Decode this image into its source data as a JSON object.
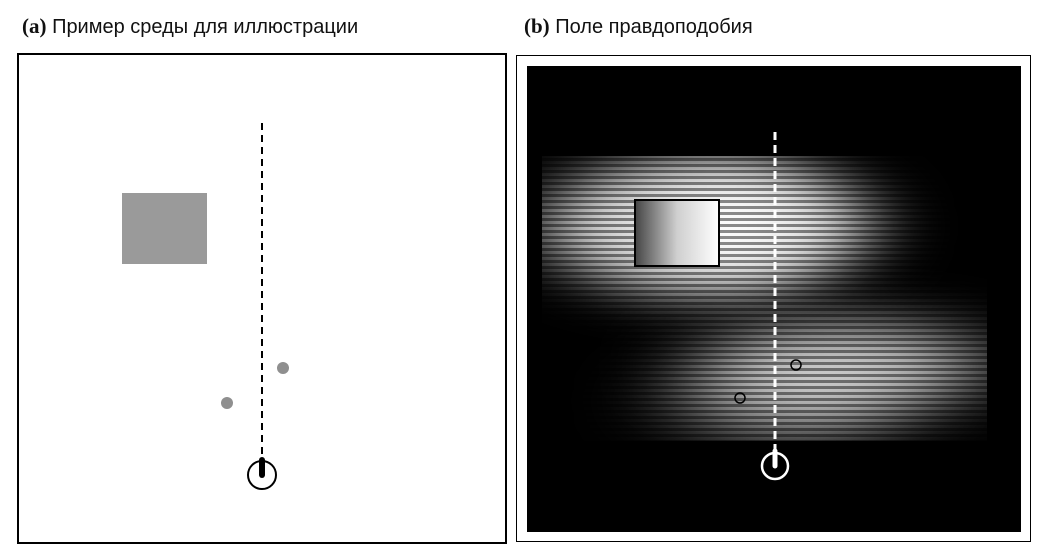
{
  "panel_a": {
    "tag": "(a)",
    "title": "Пример среды для иллюстрации"
  },
  "panel_b": {
    "tag": "(b)",
    "title": "Поле правдоподобия"
  },
  "colors": {
    "obstacle": "#9a9a9a",
    "landmark": "#8f8f8f",
    "path_a": "#000000",
    "path_b": "#ffffff",
    "background_b": "#000000"
  }
}
